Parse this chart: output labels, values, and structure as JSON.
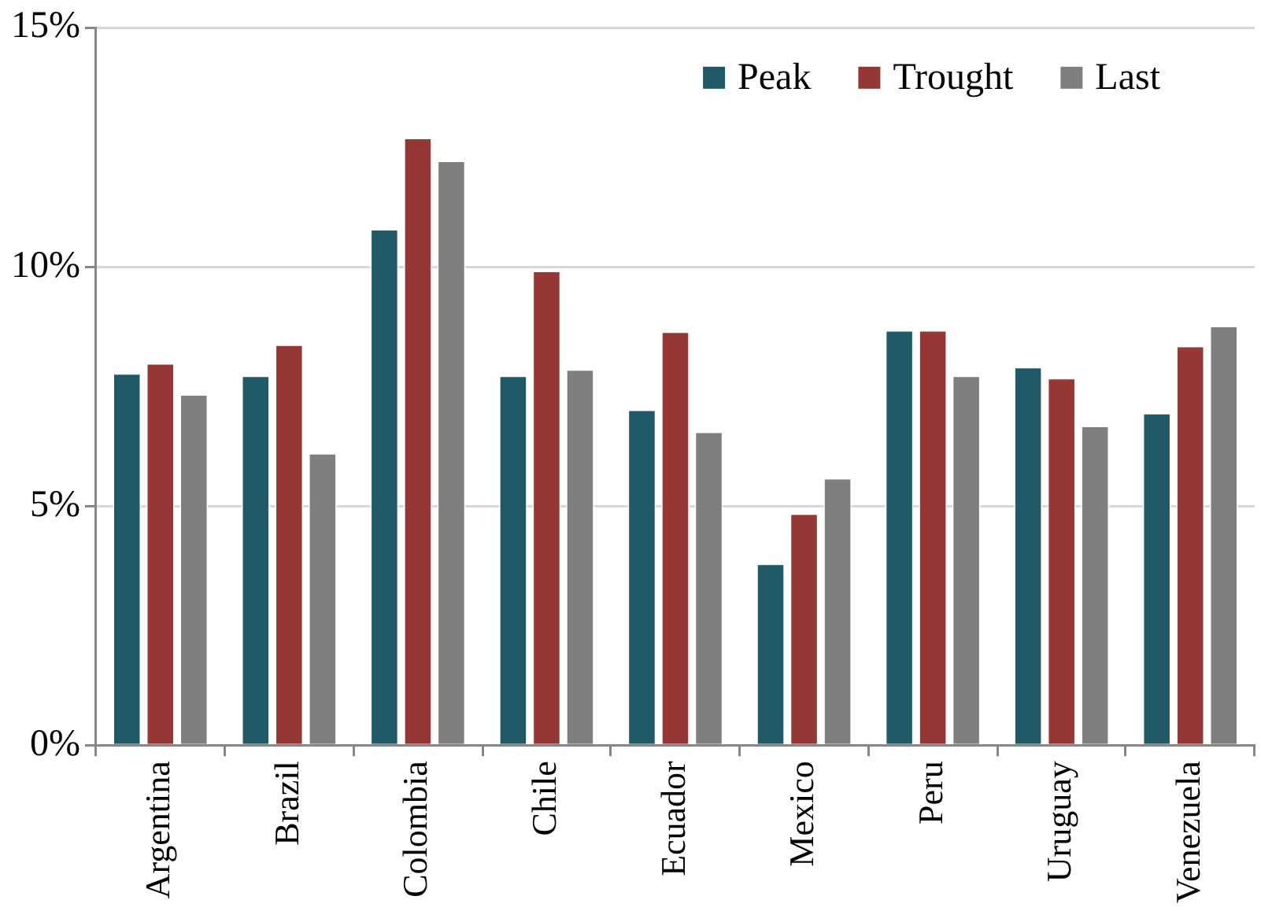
{
  "chart_data": {
    "type": "bar",
    "categories": [
      "Argentina",
      "Brazil",
      "Colombia",
      "Chile",
      "Ecuador",
      "Mexico",
      "Peru",
      "Uruguay",
      "Venezuela"
    ],
    "series": [
      {
        "name": "Peak",
        "color": "#215968",
        "values": [
          7.77,
          7.72,
          10.78,
          7.72,
          7.01,
          3.79,
          8.67,
          7.9,
          6.94
        ]
      },
      {
        "name": "Trought",
        "color": "#953735",
        "values": [
          7.98,
          8.37,
          12.69,
          9.91,
          8.64,
          4.84,
          8.67,
          7.67,
          8.34
        ]
      },
      {
        "name": "Last",
        "color": "#7f7f7f",
        "values": [
          7.33,
          6.1,
          12.21,
          7.85,
          6.55,
          5.58,
          7.72,
          6.67,
          8.76
        ]
      }
    ],
    "ylim": [
      0,
      15
    ],
    "yticks": [
      {
        "value": 0,
        "label": "0%"
      },
      {
        "value": 5,
        "label": "5%"
      },
      {
        "value": 10,
        "label": "10%"
      },
      {
        "value": 15,
        "label": "15%"
      }
    ],
    "grid": "y",
    "legend": "top right"
  }
}
